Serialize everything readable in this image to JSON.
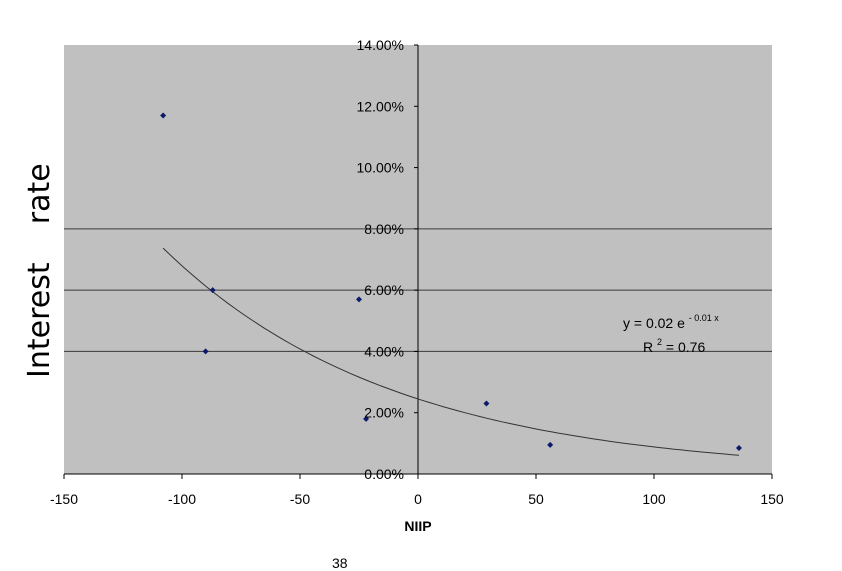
{
  "chart_data": {
    "type": "scatter",
    "title": "",
    "xlabel": "NIIP",
    "ylabel": "Interest    rate",
    "xlim": [
      -150,
      150
    ],
    "ylim": [
      0,
      0.14
    ],
    "x_ticks": [
      -150,
      -100,
      -50,
      0,
      50,
      100,
      150
    ],
    "x_tick_labels": [
      "-150",
      "-100",
      "-50",
      "0",
      "50",
      "100",
      "150"
    ],
    "y_ticks": [
      0,
      0.02,
      0.04,
      0.06,
      0.08,
      0.1,
      0.12,
      0.14
    ],
    "y_tick_labels": [
      "0.00%",
      "2.00%",
      "4.00%",
      "6.00%",
      "8.00%",
      "10.00%",
      "12.00%",
      "14.00%"
    ],
    "gridlines_y": [
      0.04,
      0.06,
      0.08
    ],
    "series": [
      {
        "points": [
          {
            "x": -108,
            "y": 0.117
          },
          {
            "x": -87,
            "y": 0.06
          },
          {
            "x": -90,
            "y": 0.04
          },
          {
            "x": -25,
            "y": 0.057
          },
          {
            "x": -22,
            "y": 0.018
          },
          {
            "x": 29,
            "y": 0.023
          },
          {
            "x": 56,
            "y": 0.0095
          },
          {
            "x": 136,
            "y": 0.0085
          }
        ]
      }
    ],
    "trendline": {
      "type": "exponential",
      "equation_prefix": "y =  0.02 e",
      "equation_exponent": "- 0.01 x",
      "r2_prefix": "R",
      "r2_exponent": "2",
      "r2_value": " =  0.76",
      "x_range": [
        -108,
        136
      ],
      "a": 0.0245,
      "k": -0.0102
    },
    "colors": {
      "plot_bg": "#c0c0c0",
      "points": "#0d1a6b",
      "grid": "#3a3a3a",
      "trend": "#333333"
    }
  },
  "page_number": "38"
}
